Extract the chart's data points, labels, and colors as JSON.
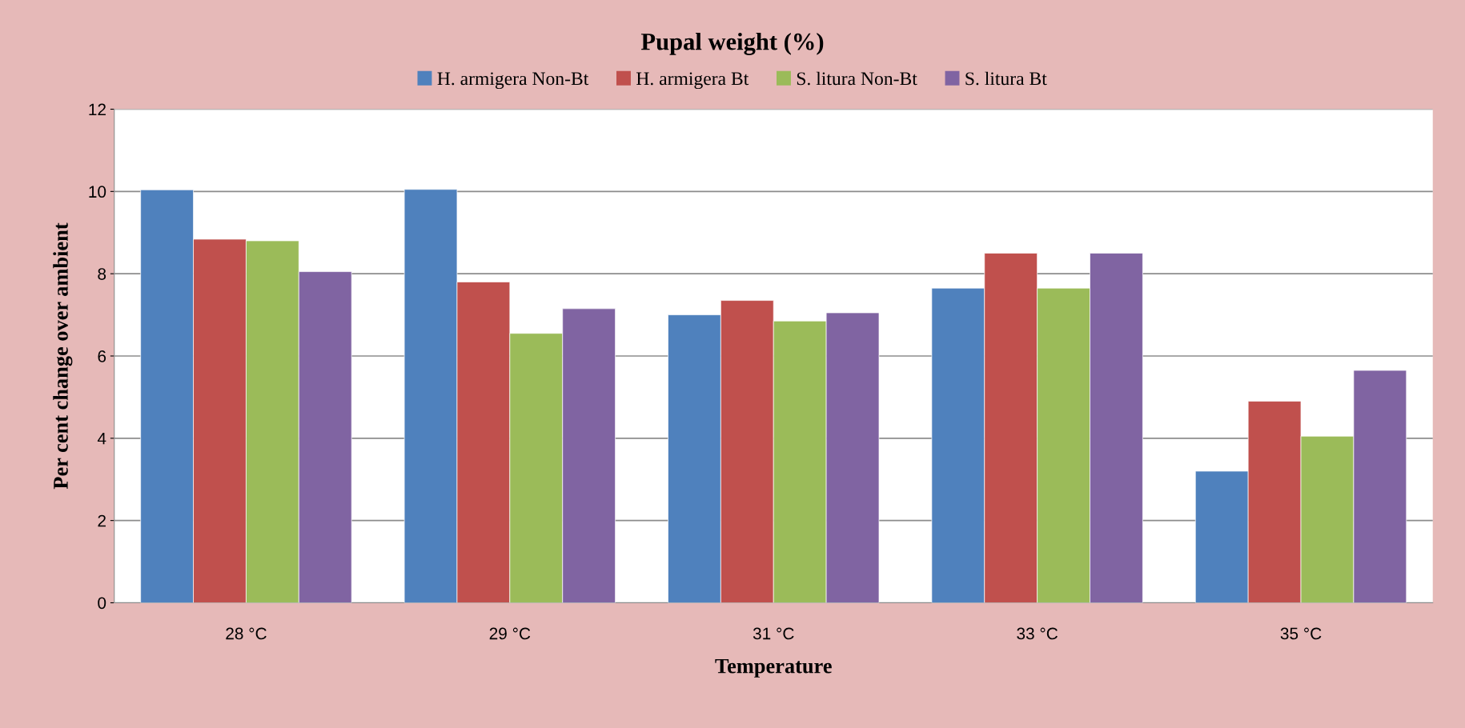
{
  "chart_data": {
    "type": "bar",
    "title": "Pupal weight (%)",
    "xlabel": "Temperature",
    "ylabel": "Per cent change over ambient",
    "categories": [
      "28 °C",
      "29 °C",
      "31 °C",
      "33 °C",
      "35 °C"
    ],
    "series": [
      {
        "name": "H. armigera Non-Bt",
        "color": "#4f81bd",
        "values": [
          10.04,
          10.05,
          7.0,
          7.65,
          3.2
        ]
      },
      {
        "name": "H. armigera Bt",
        "color": "#c0504d",
        "values": [
          8.84,
          7.8,
          7.35,
          8.5,
          4.9
        ]
      },
      {
        "name": "S. litura Non-Bt",
        "color": "#9bbb59",
        "values": [
          8.8,
          6.55,
          6.85,
          7.65,
          4.05
        ]
      },
      {
        "name": "S. litura Bt",
        "color": "#8064a2",
        "values": [
          8.05,
          7.15,
          7.05,
          8.5,
          5.65
        ]
      }
    ],
    "ylim": [
      0,
      12
    ],
    "yticks": [
      0,
      2,
      4,
      6,
      8,
      10,
      12
    ],
    "grid": "y",
    "legend": "top"
  }
}
